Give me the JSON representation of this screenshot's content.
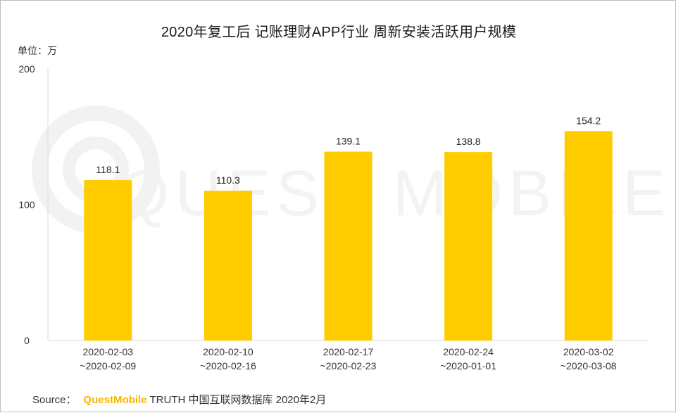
{
  "chart_data": {
    "type": "bar",
    "title": "2020年复工后 记账理财APP行业 周新安装活跃用户规模",
    "unit_label": "单位：万",
    "categories": [
      [
        "2020-02-03",
        "~2020-02-09"
      ],
      [
        "2020-02-10",
        "~2020-02-16"
      ],
      [
        "2020-02-17",
        "~2020-02-23"
      ],
      [
        "2020-02-24",
        "~2020-01-01"
      ],
      [
        "2020-03-02",
        "~2020-03-08"
      ]
    ],
    "values": [
      118.1,
      110.3,
      139.1,
      138.8,
      154.2
    ],
    "value_labels": [
      "118.1",
      "110.3",
      "139.1",
      "138.8",
      "154.2"
    ],
    "ylim": [
      0,
      200
    ],
    "yticks": [
      0,
      100,
      200
    ],
    "ytick_labels": [
      "0",
      "100",
      "200"
    ],
    "bar_color": "#ffcc00",
    "grid": false,
    "watermark": "QUEST MOBILE"
  },
  "source": {
    "prefix": "Source：",
    "brand": "QuestMobile",
    "rest": "TRUTH 中国互联网数据库 2020年2月"
  }
}
